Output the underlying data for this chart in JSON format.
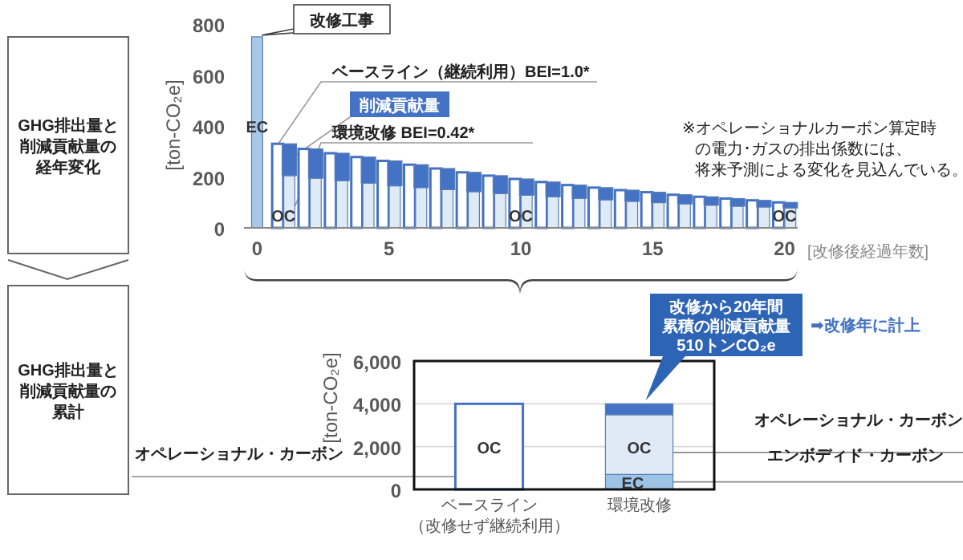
{
  "chart_data": [
    {
      "type": "bar",
      "xlabel": "[改修後経過年数]",
      "ylabel": "[ton-CO₂e]",
      "xlim": [
        -0.5,
        20.5
      ],
      "xticks": [
        0,
        5,
        10,
        15,
        20
      ],
      "ylim": [
        0,
        800
      ],
      "yticks": [
        0,
        200,
        400,
        600,
        800
      ],
      "series": [
        {
          "color": "#a9c8e8",
          "x": [
            0
          ],
          "values": [
            750
          ]
        },
        {
          "name": "ベースライン（継続利用）BEI=1.0*",
          "color": "#ffffff",
          "x": [
            1,
            2,
            3,
            4,
            5,
            6,
            7,
            8,
            9,
            10,
            11,
            12,
            13,
            14,
            15,
            16,
            17,
            18,
            19,
            20
          ],
          "values": [
            330,
            310,
            293,
            278,
            263,
            248,
            233,
            218,
            205,
            192,
            180,
            168,
            158,
            148,
            140,
            130,
            122,
            115,
            108,
            100
          ]
        },
        {
          "name": "環境改修 BEI=0.42*",
          "color": "#deebf7",
          "x": [
            1,
            2,
            3,
            4,
            5,
            6,
            7,
            8,
            9,
            10,
            11,
            12,
            13,
            14,
            15,
            16,
            17,
            18,
            19,
            20
          ],
          "values": [
            205,
            195,
            185,
            175,
            165,
            158,
            150,
            142,
            135,
            128,
            122,
            116,
            110,
            104,
            99,
            94,
            89,
            85,
            82,
            78
          ]
        },
        {
          "name": "削減貢献量",
          "color": "#4472c4",
          "x": [
            1,
            2,
            3,
            4,
            5,
            6,
            7,
            8,
            9,
            10,
            11,
            12,
            13,
            14,
            15,
            16,
            17,
            18,
            19,
            20
          ],
          "base": [
            205,
            195,
            185,
            175,
            165,
            158,
            150,
            142,
            135,
            128,
            122,
            116,
            110,
            104,
            99,
            94,
            89,
            85,
            82,
            78
          ],
          "values": [
            125,
            115,
            108,
            103,
            98,
            90,
            83,
            76,
            70,
            64,
            58,
            52,
            48,
            44,
            41,
            36,
            33,
            30,
            26,
            22
          ]
        }
      ],
      "annotations": [
        "GHG排出量と削減貢献量の経年変化",
        {
          "text": "改修工事",
          "x": 0,
          "y": 750
        },
        "※オペレーショナルカーボン算定時の電力･ガスの排出係数には、将来予測による変化を見込んでいる。",
        {
          "text": "EC",
          "x": 0,
          "y": 400
        },
        "OC",
        "OC",
        "OC"
      ]
    },
    {
      "type": "bar",
      "stacked": true,
      "grid": "y",
      "ylabel": "[ton-CO₂e]",
      "categories": [
        "ベースライン（改修せず継続利用）",
        "環境改修"
      ],
      "ylim": [
        0,
        6000
      ],
      "yticks": [
        0,
        {
          "value": 2000,
          "label": "2,000"
        },
        {
          "value": 4000,
          "label": "4,000"
        },
        {
          "value": 6000,
          "label": "6,000"
        }
      ],
      "series": [
        {
          "name": "エンボディド・カーボン",
          "color": "#9dc3e6",
          "values": [
            null,
            700
          ]
        },
        {
          "name": "オペレーショナル・カーボン",
          "colors": [
            "#ffffff",
            "#deebf7"
          ],
          "values": [
            4000,
            2790
          ]
        },
        {
          "color": "#4472c4",
          "values": [
            null,
            510
          ]
        }
      ],
      "annotations": [
        "GHG排出量と削減貢献量の累計",
        "改修から20年間累積の削減貢献量510トンCO₂e",
        "➡改修年に計上",
        "OC",
        "OC",
        {
          "text": "EC",
          "x": "環境改修",
          "y": 350
        }
      ]
    }
  ]
}
